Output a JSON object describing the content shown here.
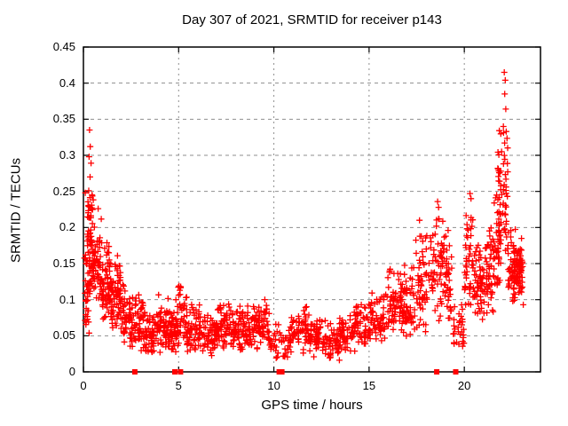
{
  "chart_data": {
    "type": "scatter",
    "title": "Day 307 of 2021, SRMTID for receiver p143",
    "xlabel": "GPS time / hours",
    "ylabel": "SRMTID / TECUs",
    "xlim": [
      0,
      24
    ],
    "ylim": [
      0,
      0.45
    ],
    "xtick_values": [
      0,
      5,
      10,
      15,
      20
    ],
    "xtick_labels": [
      "0",
      "5",
      "10",
      "15",
      "20"
    ],
    "ytick_values": [
      0,
      0.05,
      0.1,
      0.15,
      0.2,
      0.25,
      0.3,
      0.35,
      0.4,
      0.45
    ],
    "ytick_labels": [
      "0",
      "0.05",
      "0.1",
      "0.15",
      "0.2",
      "0.25",
      "0.3",
      "0.35",
      "0.4",
      "0.45"
    ],
    "grid": true,
    "legend": "none",
    "marker": {
      "shape": "plus",
      "color": "#ff0000",
      "size": 7,
      "stroke": 1.3
    },
    "grid_color": "#8f8f8f",
    "border_color": "#000000",
    "background": "#ffffff",
    "points_high": [
      [
        0.32,
        0.335
      ],
      [
        0.36,
        0.312
      ],
      [
        0.3,
        0.298
      ],
      [
        0.4,
        0.289
      ],
      [
        0.35,
        0.27
      ],
      [
        0.28,
        0.251
      ],
      [
        0.45,
        0.245
      ],
      [
        0.1,
        0.248
      ],
      [
        22.1,
        0.415
      ],
      [
        22.15,
        0.404
      ],
      [
        22.12,
        0.385
      ],
      [
        22.18,
        0.364
      ],
      [
        22.05,
        0.34
      ],
      [
        22.2,
        0.333
      ],
      [
        18.6,
        0.236
      ],
      [
        18.65,
        0.228
      ],
      [
        20.3,
        0.247
      ],
      [
        20.35,
        0.24
      ],
      [
        17.65,
        0.21
      ],
      [
        19.15,
        0.196
      ]
    ],
    "cloud_bands": [
      [
        0.05,
        0.35,
        55,
        0.05,
        0.245,
        0.12
      ],
      [
        0.2,
        0.55,
        15,
        0.195,
        0.255,
        0.22
      ],
      [
        0.35,
        0.95,
        75,
        0.09,
        0.23,
        0.14
      ],
      [
        0.95,
        1.45,
        70,
        0.07,
        0.19,
        0.12
      ],
      [
        1.45,
        1.95,
        60,
        0.05,
        0.17,
        0.1
      ],
      [
        1.95,
        2.45,
        50,
        0.035,
        0.13,
        0.075
      ],
      [
        2.45,
        3.25,
        70,
        0.025,
        0.115,
        0.055
      ],
      [
        3.25,
        3.85,
        50,
        0.02,
        0.085,
        0.05
      ],
      [
        3.85,
        4.45,
        55,
        0.025,
        0.11,
        0.06
      ],
      [
        4.45,
        4.85,
        40,
        0.025,
        0.085,
        0.05
      ],
      [
        4.85,
        5.45,
        55,
        0.03,
        0.135,
        0.065
      ],
      [
        5.45,
        6.15,
        55,
        0.02,
        0.1,
        0.05
      ],
      [
        6.15,
        7.05,
        60,
        0.02,
        0.085,
        0.048
      ],
      [
        7.05,
        7.65,
        50,
        0.028,
        0.105,
        0.06
      ],
      [
        7.65,
        8.35,
        55,
        0.025,
        0.095,
        0.055
      ],
      [
        8.35,
        9.05,
        55,
        0.03,
        0.1,
        0.06
      ],
      [
        9.05,
        9.75,
        55,
        0.03,
        0.105,
        0.06
      ],
      [
        9.75,
        10.85,
        45,
        0.015,
        0.075,
        0.04
      ],
      [
        10.85,
        11.85,
        65,
        0.02,
        0.098,
        0.055
      ],
      [
        11.85,
        12.45,
        50,
        0.02,
        0.08,
        0.048
      ],
      [
        12.45,
        13.45,
        60,
        0.013,
        0.075,
        0.04
      ],
      [
        13.45,
        14.25,
        55,
        0.02,
        0.088,
        0.05
      ],
      [
        14.25,
        15.05,
        55,
        0.03,
        0.1,
        0.06
      ],
      [
        15.05,
        15.85,
        60,
        0.04,
        0.12,
        0.07
      ],
      [
        15.85,
        16.75,
        70,
        0.05,
        0.148,
        0.088
      ],
      [
        16.75,
        17.45,
        55,
        0.04,
        0.155,
        0.09
      ],
      [
        17.45,
        18.15,
        55,
        0.05,
        0.205,
        0.11
      ],
      [
        18.15,
        18.95,
        60,
        0.07,
        0.235,
        0.13
      ],
      [
        18.95,
        19.35,
        35,
        0.06,
        0.2,
        0.12
      ],
      [
        19.35,
        20.0,
        30,
        0.025,
        0.11,
        0.06
      ],
      [
        20.0,
        20.5,
        45,
        0.07,
        0.247,
        0.13
      ],
      [
        20.5,
        21.05,
        55,
        0.05,
        0.19,
        0.11
      ],
      [
        21.05,
        21.55,
        50,
        0.07,
        0.22,
        0.13
      ],
      [
        21.55,
        21.95,
        45,
        0.1,
        0.27,
        0.16
      ],
      [
        21.75,
        22.3,
        55,
        0.15,
        0.345,
        0.25
      ],
      [
        22.3,
        22.65,
        35,
        0.08,
        0.22,
        0.15
      ],
      [
        22.55,
        23.1,
        60,
        0.09,
        0.2,
        0.14
      ],
      [
        22.6,
        23.0,
        30,
        0.12,
        0.17,
        0.145
      ]
    ],
    "zero_markers": {
      "shape": "filled-square",
      "color": "#ff0000",
      "size": 6,
      "x": [
        2.7,
        4.8,
        5.1,
        10.28,
        10.42,
        18.55,
        19.55
      ]
    }
  }
}
